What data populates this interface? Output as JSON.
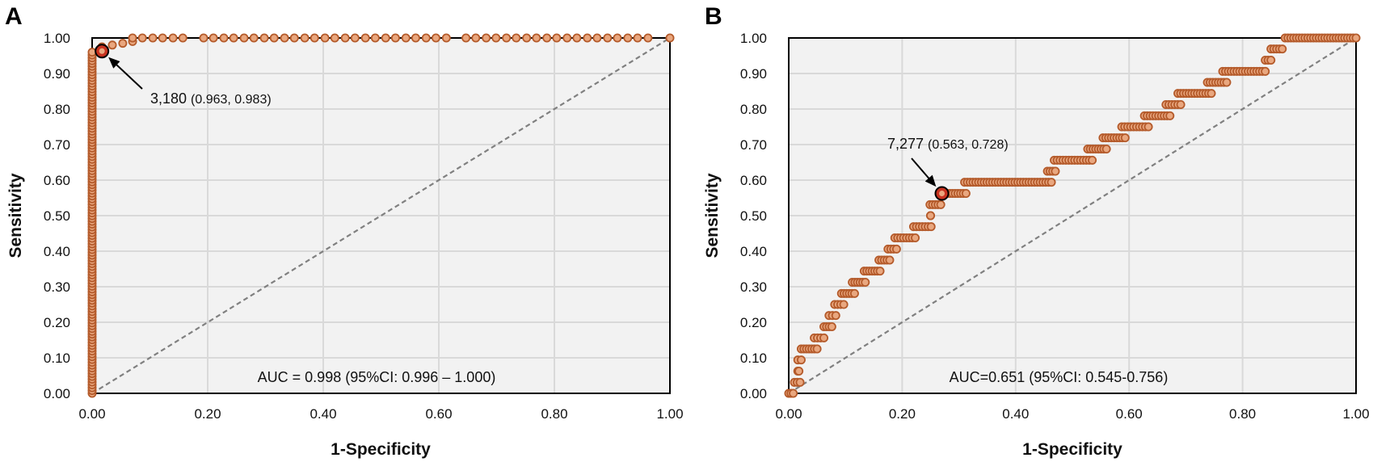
{
  "colors": {
    "marker_fill": "#e9a77f",
    "marker_stroke": "#b45a2a",
    "highlight_fill": "#c8321f",
    "plot_bg": "#f2f2f2",
    "grid": "#d9d9d9",
    "diag": "#808080"
  },
  "chart_data": [
    {
      "type": "scatter",
      "panel_label": "A",
      "title": "",
      "xlabel": "1-Specificity",
      "ylabel": "Sensitivity",
      "xlim": [
        0,
        1
      ],
      "ylim": [
        0,
        1
      ],
      "xticks": [
        "0.00",
        "0.20",
        "0.40",
        "0.60",
        "0.80",
        "1.00"
      ],
      "yticks": [
        "0.00",
        "0.10",
        "0.20",
        "0.30",
        "0.40",
        "0.50",
        "0.60",
        "0.70",
        "0.80",
        "0.90",
        "1.00"
      ],
      "grid": true,
      "reference_line": [
        [
          0,
          0
        ],
        [
          1,
          1
        ]
      ],
      "runs": [
        {
          "x0": 0,
          "x1": 0,
          "y0": 0,
          "y1": 0.96
        }
      ],
      "points": [
        [
          0.017,
          0.975
        ],
        [
          0.035,
          0.98
        ],
        [
          0.053,
          0.985
        ],
        [
          0.07,
          0.99
        ],
        [
          0.07,
          1
        ],
        [
          0.087,
          1
        ],
        [
          0.105,
          1
        ],
        [
          0.122,
          1
        ],
        [
          0.14,
          1
        ],
        [
          0.157,
          1
        ],
        [
          0.193,
          1
        ],
        [
          0.21,
          1
        ],
        [
          0.228,
          1
        ],
        [
          0.245,
          1
        ],
        [
          0.263,
          1
        ],
        [
          0.28,
          1
        ],
        [
          0.298,
          1
        ],
        [
          0.315,
          1
        ],
        [
          0.333,
          1
        ],
        [
          0.35,
          1
        ],
        [
          0.368,
          1
        ],
        [
          0.385,
          1
        ],
        [
          0.403,
          1
        ],
        [
          0.42,
          1
        ],
        [
          0.438,
          1
        ],
        [
          0.455,
          1
        ],
        [
          0.473,
          1
        ],
        [
          0.49,
          1
        ],
        [
          0.508,
          1
        ],
        [
          0.525,
          1
        ],
        [
          0.543,
          1
        ],
        [
          0.56,
          1
        ],
        [
          0.578,
          1
        ],
        [
          0.595,
          1
        ],
        [
          0.613,
          1
        ],
        [
          0.647,
          1
        ],
        [
          0.664,
          1
        ],
        [
          0.682,
          1
        ],
        [
          0.699,
          1
        ],
        [
          0.717,
          1
        ],
        [
          0.734,
          1
        ],
        [
          0.752,
          1
        ],
        [
          0.769,
          1
        ],
        [
          0.787,
          1
        ],
        [
          0.804,
          1
        ],
        [
          0.822,
          1
        ],
        [
          0.839,
          1
        ],
        [
          0.857,
          1
        ],
        [
          0.874,
          1
        ],
        [
          0.892,
          1
        ],
        [
          0.909,
          1
        ],
        [
          0.927,
          1
        ],
        [
          0.944,
          1
        ],
        [
          0.962,
          1
        ],
        [
          1,
          1
        ]
      ],
      "highlight": {
        "x": 0.017,
        "y": 0.963,
        "label_main": "3,180",
        "label_coords": "(0.963, 0.983)"
      },
      "auc_text": "AUC = 0.998 (95%CI: 0.996 – 1.000)"
    },
    {
      "type": "scatter",
      "panel_label": "B",
      "title": "",
      "xlabel": "1-Specificity",
      "ylabel": "Sensitivity",
      "xlim": [
        0,
        1
      ],
      "ylim": [
        0,
        1
      ],
      "xticks": [
        "0.00",
        "0.20",
        "0.40",
        "0.60",
        "0.80",
        "1.00"
      ],
      "yticks": [
        "0.00",
        "0.10",
        "0.20",
        "0.30",
        "0.40",
        "0.50",
        "0.60",
        "0.70",
        "0.80",
        "0.90",
        "1.00"
      ],
      "grid": true,
      "reference_line": [
        [
          0,
          0
        ],
        [
          1,
          1
        ]
      ],
      "runs": [
        {
          "x0": 0,
          "x1": 0.008,
          "y0": 0,
          "y1": 0
        },
        {
          "x0": 0.01,
          "x1": 0.02,
          "y0": 0.031,
          "y1": 0.031
        },
        {
          "x0": 0.016,
          "x1": 0.018,
          "y0": 0.0625,
          "y1": 0.0625
        },
        {
          "x0": 0.016,
          "x1": 0.022,
          "y0": 0.094,
          "y1": 0.094
        },
        {
          "x0": 0.022,
          "x1": 0.05,
          "y0": 0.125,
          "y1": 0.125
        },
        {
          "x0": 0.045,
          "x1": 0.062,
          "y0": 0.156,
          "y1": 0.156
        },
        {
          "x0": 0.062,
          "x1": 0.076,
          "y0": 0.1875,
          "y1": 0.1875
        },
        {
          "x0": 0.071,
          "x1": 0.083,
          "y0": 0.219,
          "y1": 0.219
        },
        {
          "x0": 0.081,
          "x1": 0.097,
          "y0": 0.25,
          "y1": 0.25
        },
        {
          "x0": 0.093,
          "x1": 0.116,
          "y0": 0.281,
          "y1": 0.281
        },
        {
          "x0": 0.112,
          "x1": 0.135,
          "y0": 0.3125,
          "y1": 0.3125
        },
        {
          "x0": 0.133,
          "x1": 0.161,
          "y0": 0.344,
          "y1": 0.344
        },
        {
          "x0": 0.159,
          "x1": 0.178,
          "y0": 0.375,
          "y1": 0.375
        },
        {
          "x0": 0.175,
          "x1": 0.19,
          "y0": 0.406,
          "y1": 0.406
        },
        {
          "x0": 0.187,
          "x1": 0.223,
          "y0": 0.4375,
          "y1": 0.4375
        },
        {
          "x0": 0.22,
          "x1": 0.251,
          "y0": 0.469,
          "y1": 0.469
        },
        {
          "x0": 0.25,
          "x1": 0.25,
          "y0": 0.5,
          "y1": 0.5
        },
        {
          "x0": 0.249,
          "x1": 0.268,
          "y0": 0.531,
          "y1": 0.531
        },
        {
          "x0": 0.265,
          "x1": 0.3125,
          "y0": 0.5625,
          "y1": 0.5625
        },
        {
          "x0": 0.31,
          "x1": 0.463,
          "y0": 0.594,
          "y1": 0.594
        },
        {
          "x0": 0.456,
          "x1": 0.47,
          "y0": 0.625,
          "y1": 0.625
        },
        {
          "x0": 0.468,
          "x1": 0.535,
          "y0": 0.656,
          "y1": 0.656
        },
        {
          "x0": 0.527,
          "x1": 0.56,
          "y0": 0.6875,
          "y1": 0.6875
        },
        {
          "x0": 0.554,
          "x1": 0.593,
          "y0": 0.719,
          "y1": 0.719
        },
        {
          "x0": 0.587,
          "x1": 0.634,
          "y0": 0.75,
          "y1": 0.75
        },
        {
          "x0": 0.627,
          "x1": 0.672,
          "y0": 0.781,
          "y1": 0.781
        },
        {
          "x0": 0.665,
          "x1": 0.691,
          "y0": 0.8125,
          "y1": 0.8125
        },
        {
          "x0": 0.686,
          "x1": 0.745,
          "y0": 0.844,
          "y1": 0.844
        },
        {
          "x0": 0.738,
          "x1": 0.772,
          "y0": 0.875,
          "y1": 0.875
        },
        {
          "x0": 0.765,
          "x1": 0.84,
          "y0": 0.906,
          "y1": 0.906
        },
        {
          "x0": 0.84,
          "x1": 0.85,
          "y0": 0.9375,
          "y1": 0.9375
        },
        {
          "x0": 0.85,
          "x1": 0.87,
          "y0": 0.969,
          "y1": 0.969
        },
        {
          "x0": 0.875,
          "x1": 1.0,
          "y0": 1,
          "y1": 1
        }
      ],
      "points": [],
      "highlight": {
        "x": 0.27,
        "y": 0.5625,
        "label_main": "7,277",
        "label_coords": "(0.563, 0.728)"
      },
      "auc_text": "AUC=0.651 (95%CI: 0.545-0.756)"
    }
  ]
}
